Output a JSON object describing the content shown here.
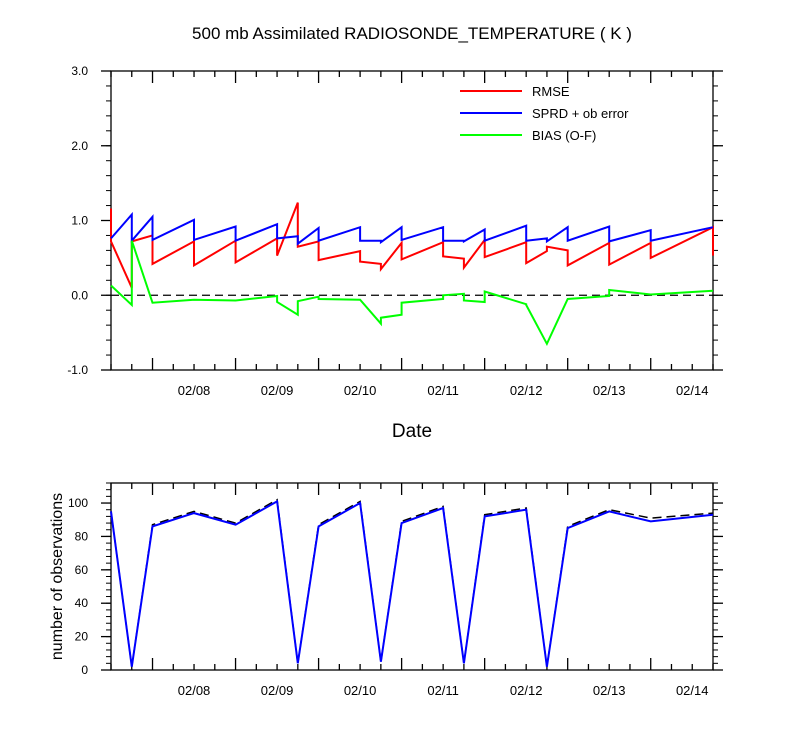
{
  "chart_data": [
    {
      "type": "line",
      "title": "500 mb Assimilated RADIOSONDE_TEMPERATURE ( K )",
      "xlabel": "Date",
      "ylabel": "",
      "x_range": [
        "02/07 12Z",
        "02/14 18Z"
      ],
      "x_tick_labels": [
        "02/08",
        "02/09",
        "02/10",
        "02/11",
        "02/12",
        "02/13",
        "02/14"
      ],
      "ylim": [
        -1.0,
        3.0
      ],
      "y_tick_labels": [
        "-1.0",
        "0.0",
        "1.0",
        "2.0",
        "3.0"
      ],
      "zero_line": "dashed",
      "legend_position": "top-right",
      "series": [
        {
          "name": "RMSE",
          "color": "#ff0000",
          "points": [
            [
              "02/07 12Z",
              1.16
            ],
            [
              "02/07 12Z",
              0.72
            ],
            [
              "02/07 18Z",
              0.1
            ],
            [
              "02/07 18Z",
              0.72
            ],
            [
              "02/08 00Z",
              0.8
            ],
            [
              "02/08 00Z",
              0.42
            ],
            [
              "02/08 12Z",
              0.72
            ],
            [
              "02/08 12Z",
              0.4
            ],
            [
              "02/09 00Z",
              0.73
            ],
            [
              "02/09 00Z",
              0.44
            ],
            [
              "02/09 12Z",
              0.76
            ],
            [
              "02/09 12Z",
              0.53
            ],
            [
              "02/09 18Z",
              1.24
            ],
            [
              "02/09 18Z",
              0.65
            ],
            [
              "02/10 00Z",
              0.72
            ],
            [
              "02/10 00Z",
              0.47
            ],
            [
              "02/10 12Z",
              0.59
            ],
            [
              "02/10 12Z",
              0.45
            ],
            [
              "02/10 18Z",
              0.42
            ],
            [
              "02/10 18Z",
              0.35
            ],
            [
              "02/11 00Z",
              0.7
            ],
            [
              "02/11 00Z",
              0.48
            ],
            [
              "02/11 12Z",
              0.71
            ],
            [
              "02/11 12Z",
              0.52
            ],
            [
              "02/11 18Z",
              0.49
            ],
            [
              "02/11 18Z",
              0.37
            ],
            [
              "02/12 00Z",
              0.74
            ],
            [
              "02/12 00Z",
              0.51
            ],
            [
              "02/12 12Z",
              0.71
            ],
            [
              "02/12 12Z",
              0.43
            ],
            [
              "02/12 18Z",
              0.59
            ],
            [
              "02/12 18Z",
              0.65
            ],
            [
              "02/13 00Z",
              0.6
            ],
            [
              "02/13 00Z",
              0.4
            ],
            [
              "02/13 12Z",
              0.7
            ],
            [
              "02/13 12Z",
              0.41
            ],
            [
              "02/14 00Z",
              0.7
            ],
            [
              "02/14 00Z",
              0.5
            ],
            [
              "02/14 18Z",
              0.91
            ],
            [
              "02/14 18Z",
              0.53
            ]
          ]
        },
        {
          "name": "SPRD + ob error",
          "color": "#0000ff",
          "points": [
            [
              "02/07 12Z",
              0.76
            ],
            [
              "02/07 18Z",
              1.08
            ],
            [
              "02/07 18Z",
              0.73
            ],
            [
              "02/08 00Z",
              1.05
            ],
            [
              "02/08 00Z",
              0.74
            ],
            [
              "02/08 12Z",
              1.01
            ],
            [
              "02/08 12Z",
              0.74
            ],
            [
              "02/09 00Z",
              0.92
            ],
            [
              "02/09 00Z",
              0.73
            ],
            [
              "02/09 12Z",
              0.95
            ],
            [
              "02/09 12Z",
              0.76
            ],
            [
              "02/09 18Z",
              0.79
            ],
            [
              "02/09 18Z",
              0.69
            ],
            [
              "02/10 00Z",
              0.9
            ],
            [
              "02/10 00Z",
              0.73
            ],
            [
              "02/10 12Z",
              0.91
            ],
            [
              "02/10 12Z",
              0.73
            ],
            [
              "02/10 18Z",
              0.73
            ],
            [
              "02/10 18Z",
              0.71
            ],
            [
              "02/11 00Z",
              0.91
            ],
            [
              "02/11 00Z",
              0.74
            ],
            [
              "02/11 12Z",
              0.91
            ],
            [
              "02/11 12Z",
              0.73
            ],
            [
              "02/11 18Z",
              0.73
            ],
            [
              "02/11 18Z",
              0.72
            ],
            [
              "02/12 00Z",
              0.88
            ],
            [
              "02/12 00Z",
              0.73
            ],
            [
              "02/12 12Z",
              0.93
            ],
            [
              "02/12 12Z",
              0.73
            ],
            [
              "02/12 18Z",
              0.76
            ],
            [
              "02/12 18Z",
              0.72
            ],
            [
              "02/13 00Z",
              0.91
            ],
            [
              "02/13 00Z",
              0.73
            ],
            [
              "02/13 12Z",
              0.92
            ],
            [
              "02/13 12Z",
              0.72
            ],
            [
              "02/14 00Z",
              0.87
            ],
            [
              "02/14 00Z",
              0.73
            ],
            [
              "02/14 18Z",
              0.91
            ]
          ]
        },
        {
          "name": "BIAS (O-F)",
          "color": "#00ff00",
          "points": [
            [
              "02/07 12Z",
              0.13
            ],
            [
              "02/07 18Z",
              -0.13
            ],
            [
              "02/07 18Z",
              0.73
            ],
            [
              "02/08 00Z",
              -0.1
            ],
            [
              "02/08 12Z",
              -0.06
            ],
            [
              "02/09 00Z",
              -0.07
            ],
            [
              "02/09 12Z",
              -0.01
            ],
            [
              "02/09 12Z",
              -0.09
            ],
            [
              "02/09 18Z",
              -0.26
            ],
            [
              "02/09 18Z",
              -0.08
            ],
            [
              "02/10 00Z",
              -0.02
            ],
            [
              "02/10 00Z",
              -0.05
            ],
            [
              "02/10 12Z",
              -0.06
            ],
            [
              "02/10 18Z",
              -0.38
            ],
            [
              "02/10 18Z",
              -0.3
            ],
            [
              "02/11 00Z",
              -0.26
            ],
            [
              "02/11 00Z",
              -0.1
            ],
            [
              "02/11 12Z",
              -0.05
            ],
            [
              "02/11 12Z",
              0.0
            ],
            [
              "02/11 18Z",
              0.02
            ],
            [
              "02/11 18Z",
              -0.07
            ],
            [
              "02/12 00Z",
              -0.09
            ],
            [
              "02/12 00Z",
              0.05
            ],
            [
              "02/12 12Z",
              -0.12
            ],
            [
              "02/12 12Z",
              -0.13
            ],
            [
              "02/12 18Z",
              -0.65
            ],
            [
              "02/13 00Z",
              -0.05
            ],
            [
              "02/13 12Z",
              -0.01
            ],
            [
              "02/13 12Z",
              0.07
            ],
            [
              "02/14 00Z",
              0.01
            ],
            [
              "02/14 18Z",
              0.06
            ]
          ]
        }
      ]
    },
    {
      "type": "line",
      "title": "",
      "xlabel": "",
      "ylabel": "number of observations",
      "x_range": [
        "02/07 12Z",
        "02/14 18Z"
      ],
      "x_tick_labels": [
        "02/08",
        "02/09",
        "02/10",
        "02/11",
        "02/12",
        "02/13",
        "02/14"
      ],
      "ylim": [
        0,
        112
      ],
      "y_tick_labels": [
        "0",
        "20",
        "40",
        "60",
        "80",
        "100"
      ],
      "series": [
        {
          "color": "#0000ff",
          "line_style": "solid",
          "points": [
            [
              "02/07 12Z",
              95
            ],
            [
              "02/07 18Z",
              2
            ],
            [
              "02/08 00Z",
              86
            ],
            [
              "02/08 12Z",
              94
            ],
            [
              "02/09 00Z",
              87
            ],
            [
              "02/09 12Z",
              101
            ],
            [
              "02/09 18Z",
              4
            ],
            [
              "02/10 00Z",
              86
            ],
            [
              "02/10 12Z",
              100
            ],
            [
              "02/10 18Z",
              5
            ],
            [
              "02/11 00Z",
              88
            ],
            [
              "02/11 12Z",
              97
            ],
            [
              "02/11 18Z",
              4
            ],
            [
              "02/12 00Z",
              92
            ],
            [
              "02/12 12Z",
              96
            ],
            [
              "02/12 18Z",
              2
            ],
            [
              "02/13 00Z",
              85
            ],
            [
              "02/13 12Z",
              95
            ],
            [
              "02/14 00Z",
              89
            ],
            [
              "02/14 18Z",
              93
            ]
          ]
        },
        {
          "color": "#000000",
          "line_style": "dashed",
          "points": [
            [
              "02/07 12Z",
              95
            ],
            [
              "02/07 18Z",
              2
            ],
            [
              "02/08 00Z",
              87
            ],
            [
              "02/08 12Z",
              95
            ],
            [
              "02/09 00Z",
              88
            ],
            [
              "02/09 12Z",
              102
            ],
            [
              "02/09 18Z",
              4
            ],
            [
              "02/10 00Z",
              87
            ],
            [
              "02/10 12Z",
              101
            ],
            [
              "02/10 18Z",
              5
            ],
            [
              "02/11 00Z",
              89
            ],
            [
              "02/11 12Z",
              98
            ],
            [
              "02/11 18Z",
              4
            ],
            [
              "02/12 00Z",
              93
            ],
            [
              "02/12 12Z",
              97
            ],
            [
              "02/12 18Z",
              2
            ],
            [
              "02/13 00Z",
              86
            ],
            [
              "02/13 12Z",
              96
            ],
            [
              "02/14 00Z",
              91
            ],
            [
              "02/14 18Z",
              94
            ]
          ]
        }
      ]
    }
  ]
}
